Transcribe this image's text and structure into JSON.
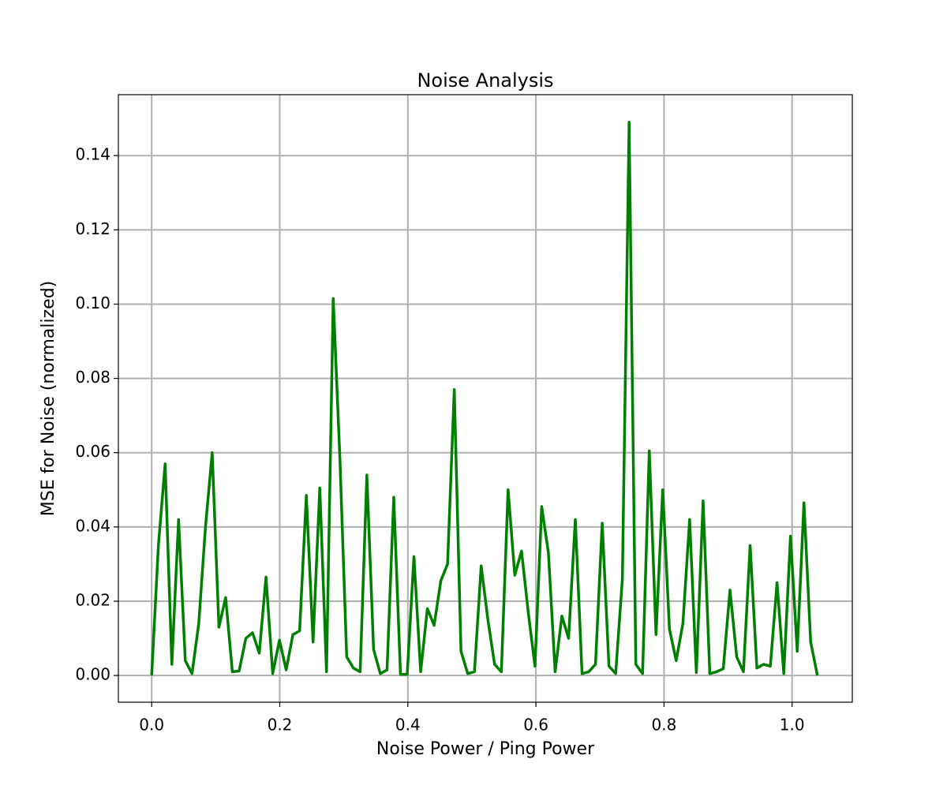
{
  "chart_data": {
    "type": "line",
    "title": "Noise Analysis",
    "x_label": "Noise Power / Ping Power",
    "y_label": "MSE for Noise (normalized)",
    "x": [
      0,
      0.0105,
      0.021,
      0.0315,
      0.042,
      0.0525,
      0.063,
      0.0735,
      0.084,
      0.0945,
      0.105,
      0.1155,
      0.126,
      0.1365,
      0.147,
      0.1575,
      0.168,
      0.1785,
      0.189,
      0.1995,
      0.21,
      0.2205,
      0.231,
      0.2415,
      0.252,
      0.2625,
      0.273,
      0.2835,
      0.294,
      0.3045,
      0.315,
      0.3255,
      0.336,
      0.3465,
      0.357,
      0.3675,
      0.378,
      0.3885,
      0.399,
      0.4095,
      0.42,
      0.4305,
      0.441,
      0.4515,
      0.462,
      0.4725,
      0.483,
      0.4935,
      0.504,
      0.5145,
      0.525,
      0.5355,
      0.546,
      0.5565,
      0.567,
      0.5775,
      0.588,
      0.5985,
      0.609,
      0.6195,
      0.63,
      0.6405,
      0.651,
      0.6615,
      0.672,
      0.6825,
      0.693,
      0.7035,
      0.714,
      0.7245,
      0.735,
      0.7455,
      0.756,
      0.7665,
      0.777,
      0.7875,
      0.798,
      0.8085,
      0.819,
      0.8295,
      0.84,
      0.8505,
      0.861,
      0.8715,
      0.882,
      0.8925,
      0.903,
      0.9135,
      0.924,
      0.9345,
      0.945,
      0.9555,
      0.966,
      0.9765,
      0.987,
      0.9975,
      1.008,
      1.0185,
      1.029,
      1.0395
    ],
    "series": [
      {
        "name": "MSE",
        "color": "#008000",
        "values": [
          0,
          0.035,
          0.057,
          0.003,
          0.042,
          0.004,
          0.0005,
          0.014,
          0.04,
          0.06,
          0.013,
          0.021,
          0.001,
          0.0012,
          0.01,
          0.0115,
          0.006,
          0.0265,
          0.0005,
          0.0095,
          0.0015,
          0.011,
          0.012,
          0.0485,
          0.009,
          0.0505,
          0.001,
          0.1015,
          0.058,
          0.005,
          0.002,
          0.001,
          0.054,
          0.007,
          0.0005,
          0.0015,
          0.048,
          0.0003,
          0.0003,
          0.032,
          0.001,
          0.018,
          0.0135,
          0.0255,
          0.03,
          0.077,
          0.0065,
          0.0005,
          0.001,
          0.0295,
          0.015,
          0.003,
          0.001,
          0.05,
          0.027,
          0.0335,
          0.017,
          0.0025,
          0.0455,
          0.033,
          0.001,
          0.016,
          0.01,
          0.042,
          0.0005,
          0.001,
          0.003,
          0.041,
          0.0025,
          0.0005,
          0.026,
          0.149,
          0.003,
          0.0005,
          0.0605,
          0.011,
          0.05,
          0.0125,
          0.004,
          0.014,
          0.042,
          0.0008,
          0.047,
          0.0005,
          0.001,
          0.0018,
          0.023,
          0.005,
          0.001,
          0.035,
          0.002,
          0.003,
          0.0025,
          0.025,
          0.0005,
          0.0375,
          0.0065,
          0.0465,
          0.009,
          0
        ]
      }
    ],
    "xlim": [
      -0.052,
      1.094
    ],
    "ylim": [
      -0.0072,
      0.1564
    ],
    "xticks": [
      {
        "value": 0,
        "label": "0.0"
      },
      {
        "value": 0.2,
        "label": "0.2"
      },
      {
        "value": 0.4,
        "label": "0.4"
      },
      {
        "value": 0.6,
        "label": "0.6"
      },
      {
        "value": 0.8,
        "label": "0.8"
      },
      {
        "value": 1.0,
        "label": "1.0"
      }
    ],
    "yticks": [
      {
        "value": 0,
        "label": "0.00"
      },
      {
        "value": 0.02,
        "label": "0.02"
      },
      {
        "value": 0.04,
        "label": "0.04"
      },
      {
        "value": 0.06,
        "label": "0.06"
      },
      {
        "value": 0.08,
        "label": "0.08"
      },
      {
        "value": 0.1,
        "label": "0.10"
      },
      {
        "value": 0.12,
        "label": "0.12"
      },
      {
        "value": 0.14,
        "label": "0.14"
      }
    ],
    "grid": true
  }
}
